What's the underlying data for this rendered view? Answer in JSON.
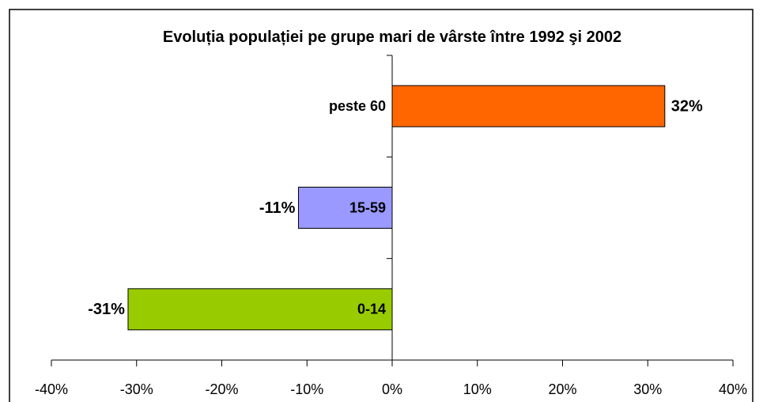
{
  "chart_data": {
    "type": "bar",
    "orientation": "horizontal",
    "title": "Evoluția populației pe grupe mari de vârste între 1992 şi 2002",
    "categories": [
      "peste 60",
      "15-59",
      "0-14"
    ],
    "values": [
      32,
      -11,
      -31
    ],
    "value_labels": [
      "32%",
      "-11%",
      "-31%"
    ],
    "colors": [
      "#ff6600",
      "#9999ff",
      "#99cc00"
    ],
    "xlim": [
      -40,
      40
    ],
    "xticks": [
      {
        "value": -40,
        "label": "-40%"
      },
      {
        "value": -30,
        "label": "-30%"
      },
      {
        "value": -20,
        "label": "-20%"
      },
      {
        "value": -10,
        "label": "-10%"
      },
      {
        "value": 0,
        "label": "0%"
      },
      {
        "value": 10,
        "label": "10%"
      },
      {
        "value": 20,
        "label": "20%"
      },
      {
        "value": 30,
        "label": "30%"
      },
      {
        "value": 40,
        "label": "40%"
      }
    ]
  }
}
